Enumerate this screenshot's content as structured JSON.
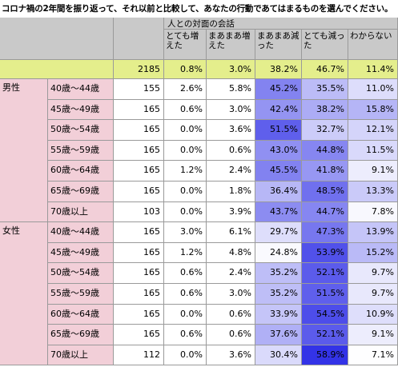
{
  "title": "コロナ禍の2年間を振り返って、それ以前と比較して、あなたの行動であてはまるものを選んでください。",
  "header": {
    "group_label": "人との対面の会話",
    "columns": [
      "とても増えた",
      "まあまあ増えた",
      "まあまあ減った",
      "とても減った",
      "わからない"
    ]
  },
  "colors": {
    "header_bg": "#c9c9c9",
    "total_bg": "#e4ee8c",
    "gender_bg": "#f2cfd8",
    "heat_min": "#ffffff",
    "heat_max": "#2d2de6"
  },
  "chart_data": {
    "type": "table",
    "title": "コロナ禍の2年間を振り返って、それ以前と比較して、あなたの行動であてはまるものを選んでください。",
    "column_group": "人との対面の会話",
    "columns": [
      "とても増えた",
      "まあまあ増えた",
      "まあまあ減った",
      "とても減った",
      "わからない"
    ],
    "total": {
      "n": "2185",
      "values": [
        "0.8%",
        "3.0%",
        "38.2%",
        "46.7%",
        "11.4%"
      ]
    },
    "groups": [
      {
        "name": "男性",
        "rows": [
          {
            "age": "40歳～44歳",
            "n": "155",
            "values": [
              "2.6%",
              "5.8%",
              "45.2%",
              "35.5%",
              "11.0%"
            ]
          },
          {
            "age": "45歳～49歳",
            "n": "165",
            "values": [
              "0.6%",
              "3.0%",
              "42.4%",
              "38.2%",
              "15.8%"
            ]
          },
          {
            "age": "50歳～54歳",
            "n": "165",
            "values": [
              "0.0%",
              "3.6%",
              "51.5%",
              "32.7%",
              "12.1%"
            ]
          },
          {
            "age": "55歳～59歳",
            "n": "165",
            "values": [
              "0.0%",
              "0.6%",
              "43.0%",
              "44.8%",
              "11.5%"
            ]
          },
          {
            "age": "60歳～64歳",
            "n": "165",
            "values": [
              "1.2%",
              "2.4%",
              "45.5%",
              "41.8%",
              "9.1%"
            ]
          },
          {
            "age": "65歳～69歳",
            "n": "165",
            "values": [
              "0.0%",
              "1.8%",
              "36.4%",
              "48.5%",
              "13.3%"
            ]
          },
          {
            "age": "70歳以上",
            "n": "103",
            "values": [
              "0.0%",
              "3.9%",
              "43.7%",
              "44.7%",
              "7.8%"
            ]
          }
        ]
      },
      {
        "name": "女性",
        "rows": [
          {
            "age": "40歳～44歳",
            "n": "165",
            "values": [
              "3.0%",
              "6.1%",
              "29.7%",
              "47.3%",
              "13.9%"
            ]
          },
          {
            "age": "45歳～49歳",
            "n": "165",
            "values": [
              "1.2%",
              "4.8%",
              "24.8%",
              "53.9%",
              "15.2%"
            ]
          },
          {
            "age": "50歳～54歳",
            "n": "165",
            "values": [
              "0.6%",
              "2.4%",
              "35.2%",
              "52.1%",
              "9.7%"
            ]
          },
          {
            "age": "55歳～59歳",
            "n": "165",
            "values": [
              "0.6%",
              "3.0%",
              "35.2%",
              "51.5%",
              "9.7%"
            ]
          },
          {
            "age": "60歳～64歳",
            "n": "165",
            "values": [
              "0.0%",
              "0.6%",
              "33.9%",
              "54.5%",
              "10.9%"
            ]
          },
          {
            "age": "65歳～69歳",
            "n": "165",
            "values": [
              "0.6%",
              "0.6%",
              "37.6%",
              "52.1%",
              "9.1%"
            ]
          },
          {
            "age": "70歳以上",
            "n": "112",
            "values": [
              "0.0%",
              "3.6%",
              "30.4%",
              "58.9%",
              "7.1%"
            ]
          }
        ]
      }
    ]
  }
}
